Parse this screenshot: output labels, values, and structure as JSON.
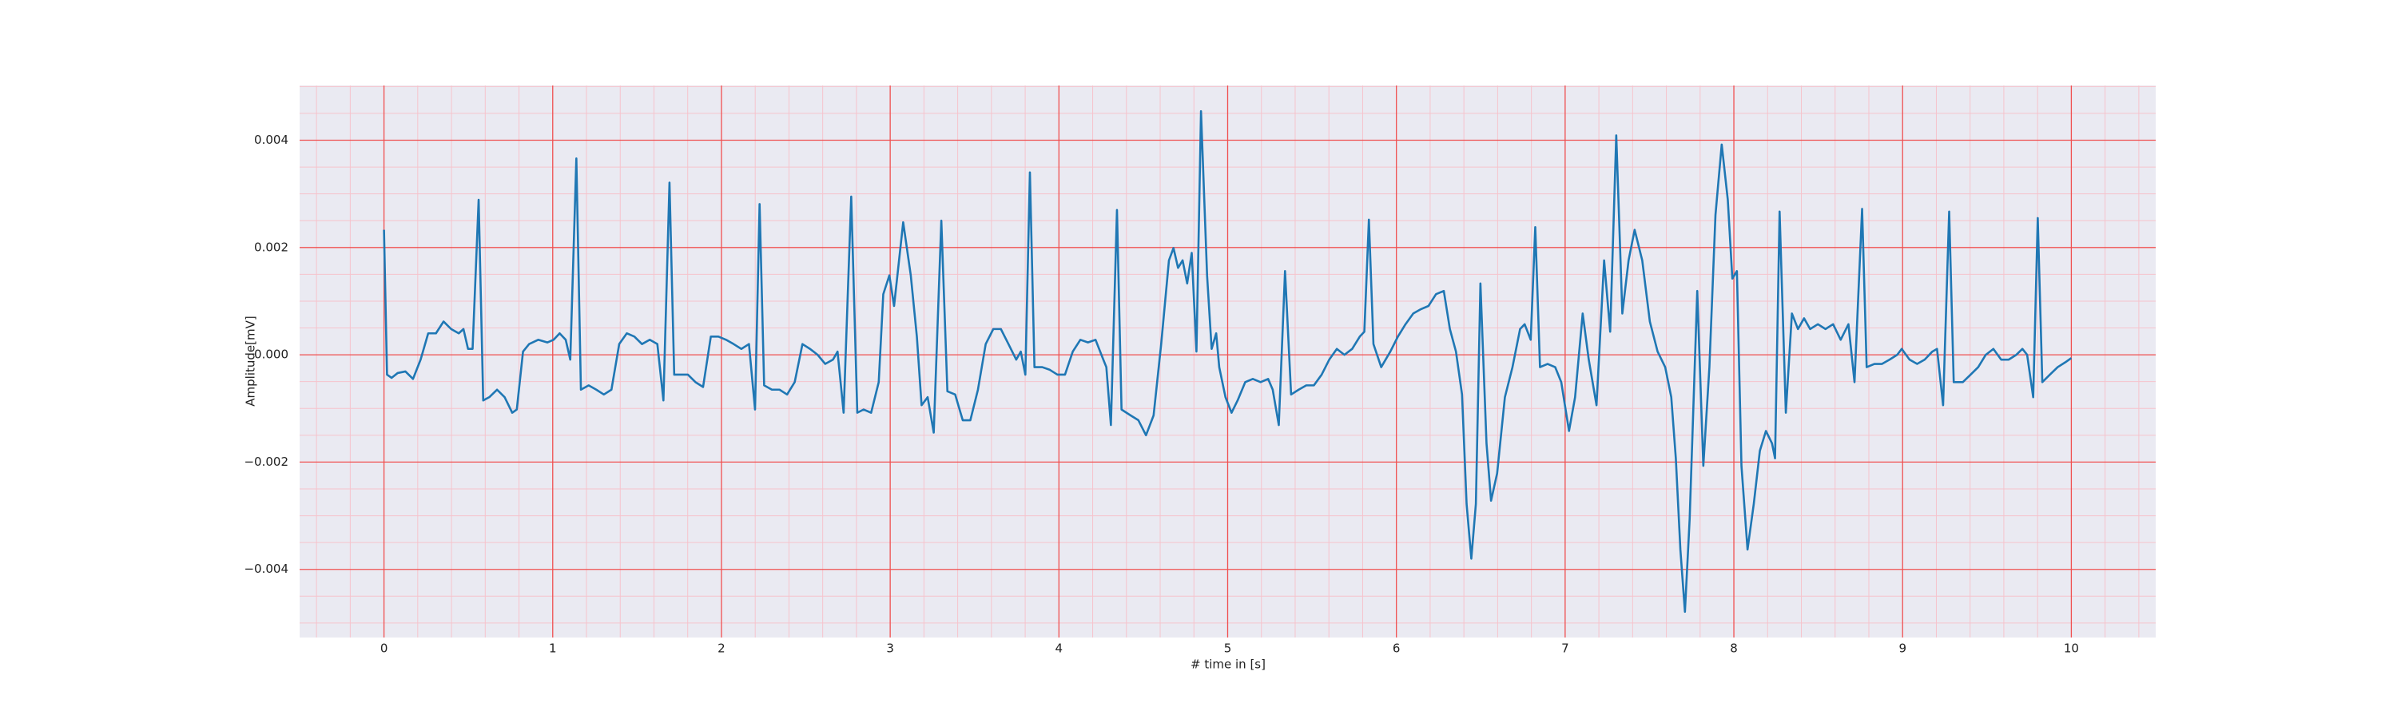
{
  "chart_data": {
    "type": "line",
    "xlabel": "# time in [s]",
    "ylabel": "Amplitude[mV]",
    "background": "#eaeaf2",
    "grid": true,
    "grid_color": "#f05050",
    "minor_grid": true,
    "minor_grid_color": "#f6c3cc",
    "xlim": [
      -0.5,
      10.5
    ],
    "ylim": [
      -0.00527,
      0.00502
    ],
    "xticks": [
      0,
      1,
      2,
      3,
      4,
      5,
      6,
      7,
      8,
      9,
      10
    ],
    "yticks": [
      {
        "value": -0.004,
        "label": "−0.004"
      },
      {
        "value": -0.002,
        "label": "−0.002"
      },
      {
        "value": 0,
        "label": "0.000"
      },
      0.002,
      0.004
    ],
    "xminorticks": [
      -0.4,
      -0.2,
      0.2,
      0.4,
      0.6,
      0.8,
      1.2,
      1.4,
      1.6,
      1.8,
      2.2,
      2.4,
      2.6,
      2.8,
      3.2,
      3.4,
      3.6,
      3.8,
      4.2,
      4.4,
      4.6,
      4.8,
      5.2,
      5.4,
      5.6,
      5.8,
      6.2,
      6.4,
      6.6,
      6.8,
      7.2,
      7.4,
      7.6,
      7.8,
      8.2,
      8.4,
      8.6,
      8.8,
      9.2,
      9.4,
      9.6,
      9.8,
      10.2,
      10.4
    ],
    "yminorticks": [
      -0.005,
      -0.0045,
      -0.0035,
      -0.003,
      -0.0025,
      -0.0015,
      -0.001,
      -0.0005,
      0.0005,
      0.001,
      0.0015,
      0.0025,
      0.003,
      0.0035,
      0.0045,
      0.005
    ],
    "x": [
      0,
      0.018,
      0.045,
      0.081,
      0.127,
      0.172,
      0.217,
      0.262,
      0.308,
      0.353,
      0.398,
      0.443,
      0.471,
      0.498,
      0.525,
      0.561,
      0.588,
      0.624,
      0.67,
      0.715,
      0.76,
      0.787,
      0.824,
      0.86,
      0.914,
      0.968,
      1.005,
      1.041,
      1.077,
      1.104,
      1.14,
      1.167,
      1.213,
      1.258,
      1.303,
      1.348,
      1.394,
      1.439,
      1.484,
      1.529,
      1.575,
      1.62,
      1.656,
      1.692,
      1.72,
      1.756,
      1.801,
      1.846,
      1.891,
      1.937,
      1.982,
      2.027,
      2.072,
      2.118,
      2.163,
      2.199,
      2.226,
      2.253,
      2.299,
      2.344,
      2.389,
      2.434,
      2.48,
      2.525,
      2.57,
      2.615,
      2.661,
      2.688,
      2.724,
      2.769,
      2.805,
      2.842,
      2.887,
      2.932,
      2.959,
      2.995,
      3.023,
      3.077,
      3.122,
      3.158,
      3.186,
      3.222,
      3.258,
      3.303,
      3.339,
      3.385,
      3.43,
      3.475,
      3.52,
      3.566,
      3.611,
      3.656,
      3.701,
      3.747,
      3.774,
      3.801,
      3.828,
      3.855,
      3.901,
      3.946,
      3.991,
      4.036,
      4.082,
      4.127,
      4.172,
      4.217,
      4.263,
      4.281,
      4.308,
      4.344,
      4.371,
      4.425,
      4.471,
      4.516,
      4.561,
      4.606,
      4.652,
      4.679,
      4.706,
      4.733,
      4.76,
      4.787,
      4.815,
      4.842,
      4.878,
      4.905,
      4.932,
      4.95,
      4.987,
      5.023,
      5.059,
      5.104,
      5.149,
      5.195,
      5.24,
      5.267,
      5.303,
      5.34,
      5.376,
      5.421,
      5.466,
      5.511,
      5.557,
      5.602,
      5.647,
      5.692,
      5.738,
      5.783,
      5.81,
      5.837,
      5.864,
      5.91,
      5.964,
      6.009,
      6.054,
      6.1,
      6.145,
      6.19,
      6.235,
      6.281,
      6.317,
      6.353,
      6.389,
      6.416,
      6.444,
      6.471,
      6.498,
      6.534,
      6.561,
      6.597,
      6.643,
      6.688,
      6.733,
      6.76,
      6.796,
      6.823,
      6.851,
      6.896,
      6.941,
      6.977,
      7.023,
      7.059,
      7.104,
      7.14,
      7.186,
      7.231,
      7.267,
      7.303,
      7.339,
      7.376,
      7.412,
      7.457,
      7.502,
      7.548,
      7.593,
      7.629,
      7.656,
      7.683,
      7.71,
      7.738,
      7.783,
      7.819,
      7.855,
      7.891,
      7.928,
      7.964,
      7.991,
      8.018,
      8.045,
      8.081,
      8.118,
      8.154,
      8.19,
      8.226,
      8.244,
      8.271,
      8.308,
      8.344,
      8.38,
      8.416,
      8.452,
      8.498,
      8.543,
      8.588,
      8.633,
      8.679,
      8.715,
      8.76,
      8.787,
      8.833,
      8.878,
      8.923,
      8.968,
      8.995,
      9.041,
      9.086,
      9.131,
      9.176,
      9.204,
      9.24,
      9.276,
      9.303,
      9.357,
      9.403,
      9.448,
      9.493,
      9.538,
      9.584,
      9.629,
      9.674,
      9.71,
      9.738,
      9.774,
      9.801,
      9.828,
      9.873,
      9.919,
      9.964,
      10.0
    ],
    "series": [
      {
        "color": "#1f77b4",
        "values": [
          0.00233,
          -0.00037,
          -0.00043,
          -0.00034,
          -0.00031,
          -0.00045,
          -9e-05,
          0.0004,
          0.0004,
          0.00062,
          0.00048,
          0.0004,
          0.00048,
          0.00011,
          0.00011,
          0.00289,
          -0.00085,
          -0.00079,
          -0.00065,
          -0.00079,
          -0.00108,
          -0.00102,
          6e-05,
          0.0002,
          0.00028,
          0.00023,
          0.00028,
          0.0004,
          0.00028,
          -9e-05,
          0.00366,
          -0.00065,
          -0.00057,
          -0.00065,
          -0.00074,
          -0.00065,
          0.0002,
          0.0004,
          0.00034,
          0.0002,
          0.00028,
          0.0002,
          -0.00085,
          0.00321,
          -0.00037,
          -0.00037,
          -0.00037,
          -0.00051,
          -0.0006,
          0.00034,
          0.00034,
          0.00028,
          0.0002,
          0.00011,
          0.0002,
          -0.00102,
          0.00281,
          -0.00057,
          -0.00065,
          -0.00065,
          -0.00074,
          -0.00051,
          0.0002,
          0.00011,
          0,
          -0.00017,
          -9e-05,
          6e-05,
          -0.00108,
          0.00295,
          -0.00108,
          -0.00102,
          -0.00108,
          -0.00051,
          0.00113,
          0.00148,
          0.00091,
          0.00247,
          0.00148,
          0.00034,
          -0.00094,
          -0.00079,
          -0.00145,
          0.0025,
          -0.00068,
          -0.00074,
          -0.00122,
          -0.00122,
          -0.00065,
          0.0002,
          0.00048,
          0.00048,
          0.0002,
          -9e-05,
          6e-05,
          -0.00037,
          0.0034,
          -0.00023,
          -0.00023,
          -0.00028,
          -0.00037,
          -0.00037,
          6e-05,
          0.00028,
          0.00023,
          0.00028,
          -9e-05,
          -0.00023,
          -0.00131,
          0.0027,
          -0.00102,
          -0.00113,
          -0.00122,
          -0.0015,
          -0.00113,
          0.0002,
          0.00176,
          0.00199,
          0.00162,
          0.00176,
          0.00133,
          0.0019,
          6e-05,
          0.00454,
          0.00148,
          0.00011,
          0.0004,
          -0.00023,
          -0.00079,
          -0.00108,
          -0.00085,
          -0.00051,
          -0.00045,
          -0.00051,
          -0.00045,
          -0.00065,
          -0.00131,
          0.00156,
          -0.00074,
          -0.00065,
          -0.00057,
          -0.00057,
          -0.00037,
          -9e-05,
          0.00011,
          0,
          0.00011,
          0.00034,
          0.00043,
          0.00252,
          0.0002,
          -0.00023,
          6e-05,
          0.00034,
          0.00057,
          0.00077,
          0.00085,
          0.00091,
          0.00113,
          0.00119,
          0.00048,
          6e-05,
          -0.00074,
          -0.00278,
          -0.0038,
          -0.00278,
          0.00133,
          -0.00165,
          -0.00272,
          -0.00221,
          -0.00079,
          -0.00023,
          0.00048,
          0.00057,
          0.00028,
          0.00238,
          -0.00023,
          -0.00017,
          -0.00023,
          -0.00051,
          -0.00142,
          -0.00079,
          0.00077,
          -9e-05,
          -0.00094,
          0.00176,
          0.00043,
          0.00409,
          0.00077,
          0.00176,
          0.00233,
          0.00176,
          0.00062,
          6e-05,
          -0.00023,
          -0.00079,
          -0.00193,
          -0.00363,
          -0.00479,
          -0.00306,
          0.00119,
          -0.00207,
          -0.00023,
          0.00261,
          0.00392,
          0.00289,
          0.00142,
          0.00156,
          -0.00207,
          -0.00363,
          -0.00278,
          -0.00179,
          -0.00142,
          -0.00165,
          -0.00193,
          0.00267,
          -0.00108,
          0.00077,
          0.00048,
          0.00068,
          0.00048,
          0.00057,
          0.00048,
          0.00057,
          0.00028,
          0.00057,
          -0.00051,
          0.00272,
          -0.00023,
          -0.00017,
          -0.00017,
          -9e-05,
          0,
          0.00011,
          -9e-05,
          -0.00017,
          -9e-05,
          6e-05,
          0.00011,
          -0.00094,
          0.00267,
          -0.00051,
          -0.00051,
          -0.00037,
          -0.00023,
          0,
          0.00011,
          -9e-05,
          -9e-05,
          0,
          0.00011,
          0,
          -0.00079,
          0.00255,
          -0.00051,
          -0.00037,
          -0.00023,
          -0.00014,
          -6e-05
        ]
      }
    ]
  }
}
